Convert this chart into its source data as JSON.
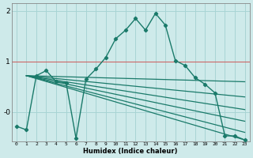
{
  "xlabel": "Humidex (Indice chaleur)",
  "background_color": "#ceeaea",
  "grid_color": "#a8d4d4",
  "line_color": "#1a7a6a",
  "red_line_color": "#cc6666",
  "xlim": [
    -0.5,
    23.5
  ],
  "ylim": [
    -0.58,
    2.15
  ],
  "x_ticks": [
    0,
    1,
    2,
    3,
    4,
    5,
    6,
    7,
    8,
    9,
    10,
    11,
    12,
    13,
    14,
    15,
    16,
    17,
    18,
    19,
    20,
    21,
    22,
    23
  ],
  "y_ticks": [
    0,
    1,
    2
  ],
  "y_tick_labels": [
    "-0",
    "1",
    "2"
  ],
  "red_line_y": 1.0,
  "main_x": [
    0,
    1,
    2,
    3,
    4,
    5,
    6,
    7,
    8,
    9,
    10,
    11,
    12,
    13,
    14,
    15,
    16,
    17,
    18,
    19,
    20,
    21,
    22,
    23
  ],
  "main_y": [
    -0.28,
    -0.35,
    0.72,
    0.82,
    0.6,
    0.58,
    -0.52,
    0.65,
    0.85,
    1.08,
    1.45,
    1.62,
    1.85,
    1.62,
    1.95,
    1.72,
    1.02,
    0.92,
    0.68,
    0.55,
    0.38,
    -0.47,
    -0.47,
    -0.55
  ],
  "trend_lines": [
    {
      "x0": 1,
      "y0": 0.72,
      "x1": 23,
      "y1": 0.6
    },
    {
      "x0": 1,
      "y0": 0.72,
      "x1": 23,
      "y1": 0.3
    },
    {
      "x0": 1,
      "y0": 0.72,
      "x1": 23,
      "y1": 0.05
    },
    {
      "x0": 1,
      "y0": 0.72,
      "x1": 23,
      "y1": -0.18
    },
    {
      "x0": 1,
      "y0": 0.72,
      "x1": 23,
      "y1": -0.4
    },
    {
      "x0": 1,
      "y0": 0.72,
      "x1": 23,
      "y1": -0.55
    }
  ]
}
